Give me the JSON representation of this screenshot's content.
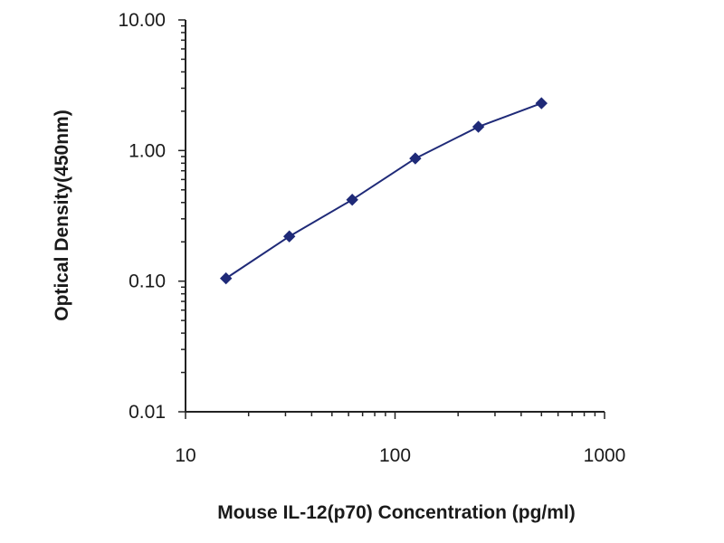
{
  "chart_data": {
    "type": "line",
    "xlabel": "Mouse IL-12(p70) Concentration (pg/ml)",
    "ylabel": "Optical Density(450nm)",
    "x_scale": "log",
    "y_scale": "log",
    "xlim": [
      10,
      1000
    ],
    "ylim": [
      0.01,
      10
    ],
    "x_ticks": [
      {
        "value": 10,
        "label": "10"
      },
      {
        "value": 100,
        "label": "100"
      },
      {
        "value": 1000,
        "label": "1000"
      }
    ],
    "y_ticks": [
      {
        "value": 0.01,
        "label": "0.01"
      },
      {
        "value": 0.1,
        "label": "0.10"
      },
      {
        "value": 1,
        "label": "1.00"
      },
      {
        "value": 10,
        "label": "10.00"
      }
    ],
    "series": [
      {
        "color": "#1f2a78",
        "marker": "diamond",
        "x": [
          15.6,
          31.3,
          62.5,
          125,
          250,
          500
        ],
        "y": [
          0.105,
          0.22,
          0.42,
          0.87,
          1.52,
          2.3
        ]
      }
    ],
    "grid": false,
    "axis_color": "#222222"
  }
}
